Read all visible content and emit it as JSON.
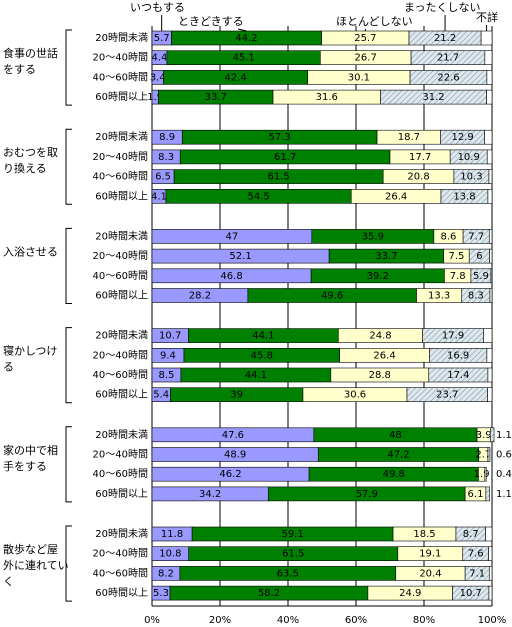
{
  "chart_data": {
    "type": "bar",
    "orientation": "horizontal",
    "stacked": true,
    "categories": [
      "20時間未満",
      "20～40時間",
      "40～60時間",
      "60時間以上"
    ],
    "group_labels": [
      [
        "食事の世話",
        "をする"
      ],
      [
        "おむつを取",
        "り換える"
      ],
      [
        "入浴させる"
      ],
      [
        "寝かしつけ",
        "る"
      ],
      [
        "家の中で相",
        "手をする"
      ],
      [
        "散歩など屋",
        "外に連れてい",
        "く"
      ]
    ],
    "series": [
      {
        "name": "いつもする",
        "color": "#9999ff",
        "values": [
          [
            5.7,
            4.4,
            3.4,
            1.9
          ],
          [
            8.9,
            8.3,
            6.5,
            4.1
          ],
          [
            47.0,
            52.1,
            46.8,
            28.2
          ],
          [
            10.7,
            9.4,
            8.5,
            5.4
          ],
          [
            47.6,
            48.9,
            46.2,
            34.2
          ],
          [
            11.8,
            10.8,
            8.2,
            5.3
          ]
        ]
      },
      {
        "name": "ときどきする",
        "color": "#008000",
        "values": [
          [
            44.2,
            45.1,
            42.4,
            33.7
          ],
          [
            57.3,
            61.7,
            61.5,
            54.5
          ],
          [
            35.9,
            33.7,
            39.2,
            49.6
          ],
          [
            44.1,
            45.8,
            44.1,
            39.0
          ],
          [
            48.0,
            47.2,
            49.8,
            57.9
          ],
          [
            59.1,
            61.5,
            63.5,
            58.2
          ]
        ]
      },
      {
        "name": "ほとんどしない",
        "color": "#ffffcc",
        "values": [
          [
            25.7,
            26.7,
            30.1,
            31.6
          ],
          [
            18.7,
            17.7,
            20.8,
            26.4
          ],
          [
            8.6,
            7.5,
            7.8,
            13.3
          ],
          [
            24.8,
            26.4,
            28.8,
            30.6
          ],
          [
            3.9,
            2.7,
            1.9,
            6.1
          ],
          [
            18.5,
            19.1,
            20.4,
            24.9
          ]
        ]
      },
      {
        "name": "まったくしない",
        "color": "#dde8ee",
        "hatch": true,
        "values": [
          [
            21.2,
            21.7,
            22.6,
            31.2
          ],
          [
            12.9,
            10.9,
            10.3,
            13.8
          ],
          [
            7.7,
            6.0,
            5.9,
            8.3
          ],
          [
            17.9,
            16.9,
            17.4,
            23.7
          ],
          [
            1.1,
            0.6,
            0.4,
            1.1
          ],
          [
            8.7,
            7.6,
            7.1,
            10.7
          ]
        ]
      },
      {
        "name": "不詳",
        "color": "#ffffff",
        "values": [
          [
            3.2,
            2.1,
            1.5,
            1.6
          ],
          [
            2.2,
            1.4,
            0.9,
            1.2
          ],
          [
            0.8,
            0.7,
            0.3,
            0.6
          ],
          [
            2.5,
            1.5,
            1.2,
            1.3
          ],
          [
            null,
            null,
            null,
            null
          ],
          [
            1.9,
            1.0,
            0.8,
            0.9
          ]
        ]
      }
    ],
    "xlim": [
      0,
      100
    ],
    "xticks": [
      {
        "value": 0,
        "label": "0%"
      },
      {
        "value": 20,
        "label": "20%"
      },
      {
        "value": 40,
        "label": "40%"
      },
      {
        "value": 60,
        "label": "60%"
      },
      {
        "value": 80,
        "label": "80%"
      },
      {
        "value": 100,
        "label": "100%"
      }
    ],
    "grid": true
  }
}
